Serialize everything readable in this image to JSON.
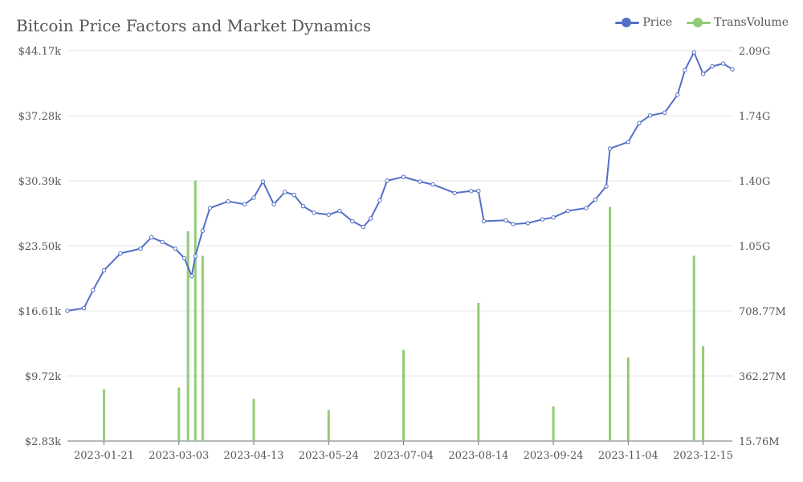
{
  "chart_data": {
    "type": "bar+line",
    "title": "Bitcoin Price Factors and Market Dynamics",
    "legend": {
      "position": "top-right",
      "items": [
        "Price",
        "TransVolume"
      ]
    },
    "colors": {
      "price": "#5470c6",
      "volume": "#91cc75",
      "grid": "#e6e6e6",
      "text": "#555555"
    },
    "y_left": {
      "min": 2830,
      "max": 44170,
      "ticks": [
        "$2.83k",
        "$9.72k",
        "$16.61k",
        "$23.50k",
        "$30.39k",
        "$37.28k",
        "$44.17k"
      ]
    },
    "y_right": {
      "min": 15760000,
      "max": 2090000000,
      "ticks": [
        "15.76M",
        "362.27M",
        "708.77M",
        "1.05G",
        "1.40G",
        "1.74G",
        "2.09G"
      ]
    },
    "x_ticks": [
      "2023-01-21",
      "2023-03-03",
      "2023-04-13",
      "2023-05-24",
      "2023-07-04",
      "2023-08-14",
      "2023-09-24",
      "2023-11-04",
      "2023-12-15"
    ],
    "x_range": {
      "start": "2023-01-01",
      "end": "2023-12-31"
    },
    "series": [
      {
        "name": "Price",
        "kind": "line",
        "x": [
          "2023-01-01",
          "2023-01-10",
          "2023-01-15",
          "2023-01-21",
          "2023-01-30",
          "2023-02-10",
          "2023-02-16",
          "2023-02-22",
          "2023-03-01",
          "2023-03-06",
          "2023-03-10",
          "2023-03-12",
          "2023-03-16",
          "2023-03-20",
          "2023-03-30",
          "2023-04-08",
          "2023-04-13",
          "2023-04-18",
          "2023-04-24",
          "2023-04-30",
          "2023-05-05",
          "2023-05-10",
          "2023-05-16",
          "2023-05-24",
          "2023-05-30",
          "2023-06-06",
          "2023-06-12",
          "2023-06-16",
          "2023-06-21",
          "2023-06-25",
          "2023-07-04",
          "2023-07-13",
          "2023-07-20",
          "2023-08-01",
          "2023-08-10",
          "2023-08-14",
          "2023-08-17",
          "2023-08-29",
          "2023-09-02",
          "2023-09-10",
          "2023-09-18",
          "2023-09-24",
          "2023-10-02",
          "2023-10-12",
          "2023-10-17",
          "2023-10-23",
          "2023-10-25",
          "2023-11-04",
          "2023-11-10",
          "2023-11-16",
          "2023-11-24",
          "2023-12-01",
          "2023-12-05",
          "2023-12-10",
          "2023-12-15",
          "2023-12-20",
          "2023-12-26",
          "2023-12-31"
        ],
        "values": [
          16620,
          16900,
          18800,
          20900,
          22700,
          23200,
          24400,
          23900,
          23200,
          22200,
          20300,
          22400,
          25100,
          27500,
          28200,
          27900,
          28600,
          30300,
          27900,
          29200,
          28900,
          27700,
          27000,
          26800,
          27200,
          26100,
          25500,
          26400,
          28300,
          30400,
          30800,
          30300,
          30000,
          29100,
          29300,
          29300,
          26100,
          26200,
          25800,
          25900,
          26300,
          26500,
          27200,
          27500,
          28400,
          29800,
          33800,
          34500,
          36500,
          37300,
          37600,
          39500,
          42100,
          44000,
          41700,
          42500,
          42800,
          42200
        ]
      },
      {
        "name": "TransVolume",
        "kind": "bar",
        "x": [
          "2023-01-21",
          "2023-03-03",
          "2023-03-08",
          "2023-03-12",
          "2023-03-16",
          "2023-04-13",
          "2023-05-24",
          "2023-07-04",
          "2023-08-14",
          "2023-09-24",
          "2023-10-25",
          "2023-11-04",
          "2023-12-10",
          "2023-12-15"
        ],
        "values": [
          290000000,
          300000000,
          1130000000,
          1400000000,
          1000000000,
          240000000,
          180000000,
          500000000,
          750000000,
          200000000,
          1260000000,
          460000000,
          1000000000,
          520000000
        ]
      }
    ]
  }
}
